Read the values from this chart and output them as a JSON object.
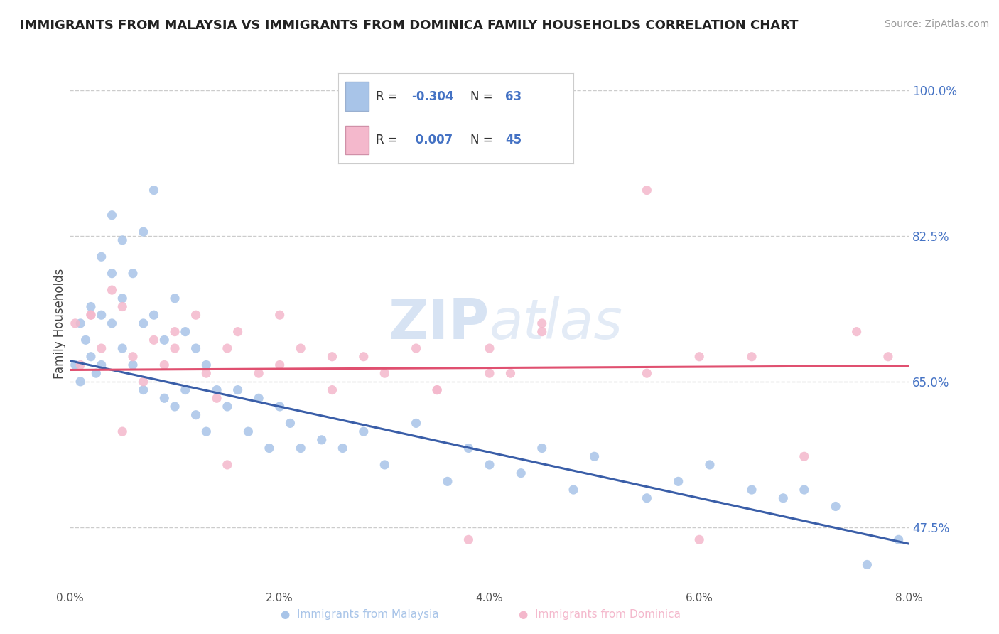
{
  "title": "IMMIGRANTS FROM MALAYSIA VS IMMIGRANTS FROM DOMINICA FAMILY HOUSEHOLDS CORRELATION CHART",
  "source": "Source: ZipAtlas.com",
  "ylabel": "Family Households",
  "xlim": [
    0.0,
    0.08
  ],
  "ylim": [
    0.4,
    1.04
  ],
  "yticks": [
    0.475,
    0.65,
    0.825,
    1.0
  ],
  "ytick_labels": [
    "47.5%",
    "65.0%",
    "82.5%",
    "100.0%"
  ],
  "xticks": [
    0.0,
    0.02,
    0.04,
    0.06,
    0.08
  ],
  "xtick_labels": [
    "0.0%",
    "2.0%",
    "4.0%",
    "6.0%",
    "8.0%"
  ],
  "malaysia_color": "#a8c4e8",
  "dominica_color": "#f4b8cc",
  "malaysia_line_color": "#3a5ea8",
  "dominica_line_color": "#e05070",
  "R_malaysia": -0.304,
  "N_malaysia": 63,
  "R_dominica": 0.007,
  "N_dominica": 45,
  "background_color": "#ffffff",
  "grid_color": "#cccccc",
  "legend_text_color": "#4472c4",
  "malaysia_scatter_x": [
    0.0005,
    0.001,
    0.001,
    0.0015,
    0.002,
    0.002,
    0.0025,
    0.003,
    0.003,
    0.003,
    0.004,
    0.004,
    0.004,
    0.005,
    0.005,
    0.005,
    0.006,
    0.006,
    0.007,
    0.007,
    0.007,
    0.008,
    0.008,
    0.009,
    0.009,
    0.01,
    0.01,
    0.011,
    0.011,
    0.012,
    0.012,
    0.013,
    0.013,
    0.014,
    0.015,
    0.016,
    0.017,
    0.018,
    0.019,
    0.02,
    0.021,
    0.022,
    0.024,
    0.026,
    0.028,
    0.03,
    0.033,
    0.036,
    0.038,
    0.04,
    0.043,
    0.045,
    0.048,
    0.05,
    0.055,
    0.058,
    0.061,
    0.065,
    0.068,
    0.07,
    0.073,
    0.076,
    0.079
  ],
  "malaysia_scatter_y": [
    0.67,
    0.72,
    0.65,
    0.7,
    0.74,
    0.68,
    0.66,
    0.8,
    0.73,
    0.67,
    0.85,
    0.78,
    0.72,
    0.82,
    0.75,
    0.69,
    0.78,
    0.67,
    0.83,
    0.72,
    0.64,
    0.88,
    0.73,
    0.7,
    0.63,
    0.75,
    0.62,
    0.71,
    0.64,
    0.69,
    0.61,
    0.67,
    0.59,
    0.64,
    0.62,
    0.64,
    0.59,
    0.63,
    0.57,
    0.62,
    0.6,
    0.57,
    0.58,
    0.57,
    0.59,
    0.55,
    0.6,
    0.53,
    0.57,
    0.55,
    0.54,
    0.57,
    0.52,
    0.56,
    0.51,
    0.53,
    0.55,
    0.52,
    0.51,
    0.52,
    0.5,
    0.43,
    0.46
  ],
  "dominica_scatter_x": [
    0.0005,
    0.001,
    0.002,
    0.003,
    0.004,
    0.005,
    0.006,
    0.007,
    0.008,
    0.009,
    0.01,
    0.012,
    0.013,
    0.014,
    0.015,
    0.016,
    0.018,
    0.02,
    0.022,
    0.025,
    0.028,
    0.03,
    0.033,
    0.035,
    0.038,
    0.04,
    0.042,
    0.045,
    0.025,
    0.015,
    0.01,
    0.005,
    0.002,
    0.06,
    0.055,
    0.04,
    0.02,
    0.035,
    0.045,
    0.055,
    0.065,
    0.07,
    0.075,
    0.078,
    0.06
  ],
  "dominica_scatter_y": [
    0.72,
    0.67,
    0.73,
    0.69,
    0.76,
    0.74,
    0.68,
    0.65,
    0.7,
    0.67,
    0.71,
    0.73,
    0.66,
    0.63,
    0.69,
    0.71,
    0.66,
    0.67,
    0.69,
    0.64,
    0.68,
    0.66,
    0.69,
    0.64,
    0.46,
    0.69,
    0.66,
    0.71,
    0.68,
    0.55,
    0.69,
    0.59,
    0.73,
    0.68,
    0.88,
    0.66,
    0.73,
    0.64,
    0.72,
    0.66,
    0.68,
    0.56,
    0.71,
    0.68,
    0.46
  ],
  "malaysia_line_x0": 0.0,
  "malaysia_line_y0": 0.675,
  "malaysia_line_x1": 0.08,
  "malaysia_line_y1": 0.455,
  "dominica_line_x0": 0.0,
  "dominica_line_y0": 0.664,
  "dominica_line_x1": 0.08,
  "dominica_line_y1": 0.669
}
